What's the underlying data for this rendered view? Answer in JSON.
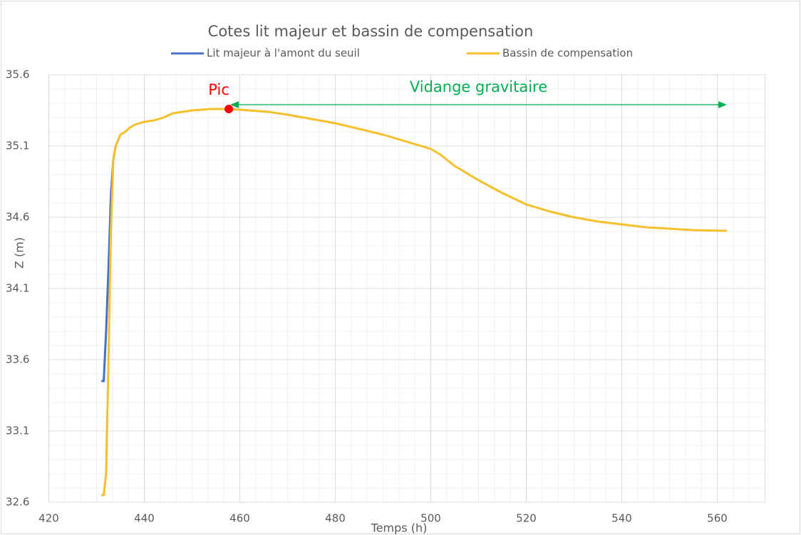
{
  "chart_data": {
    "type": "line",
    "title": "Cotes lit majeur et bassin de compensation",
    "x_label": "Temps (h)",
    "y_label": "Z (m)",
    "xlim": [
      420,
      570
    ],
    "xticks": [
      420,
      440,
      460,
      480,
      500,
      520,
      540,
      560
    ],
    "ylim": [
      32.6,
      35.6
    ],
    "yticks": [
      32.6,
      33.1,
      33.6,
      34.1,
      34.6,
      35.1,
      35.6
    ],
    "grid": true,
    "legend": "top",
    "series": [
      {
        "name": "Lit majeur à l'amont du seuil",
        "color": "#4472c4",
        "x": [
          431,
          431.5,
          432,
          432.5,
          433,
          433.5,
          434
        ],
        "values": [
          33.45,
          33.45,
          33.8,
          34.25,
          34.75,
          35.0,
          35.1
        ]
      },
      {
        "name": "Bassin de compensation",
        "color": "#f5c02b",
        "x": [
          431,
          431.5,
          432,
          432.5,
          433,
          433.5,
          434,
          435,
          436,
          437,
          438,
          440,
          442,
          444,
          446,
          448,
          450,
          454,
          458,
          462,
          466,
          470,
          475,
          480,
          485,
          490,
          495,
          500,
          502,
          505,
          510,
          515,
          520,
          525,
          530,
          535,
          540,
          545,
          550,
          555,
          562
        ],
        "values": [
          32.65,
          32.65,
          32.8,
          33.6,
          34.5,
          35.0,
          35.1,
          35.18,
          35.2,
          35.23,
          35.25,
          35.27,
          35.28,
          35.3,
          35.33,
          35.34,
          35.35,
          35.36,
          35.36,
          35.35,
          35.34,
          35.32,
          35.29,
          35.26,
          35.22,
          35.18,
          35.13,
          35.08,
          35.04,
          34.96,
          34.86,
          34.77,
          34.69,
          34.64,
          34.6,
          34.57,
          34.55,
          34.53,
          34.52,
          34.51,
          34.505
        ]
      }
    ],
    "peak": {
      "label": "Pic",
      "x": 457.7,
      "y": 35.36,
      "color": "#ff0000"
    },
    "arrow": {
      "label": "Vidange gravitaire",
      "x": [
        458,
        562
      ],
      "y": 35.39,
      "color": "#00b050"
    }
  }
}
